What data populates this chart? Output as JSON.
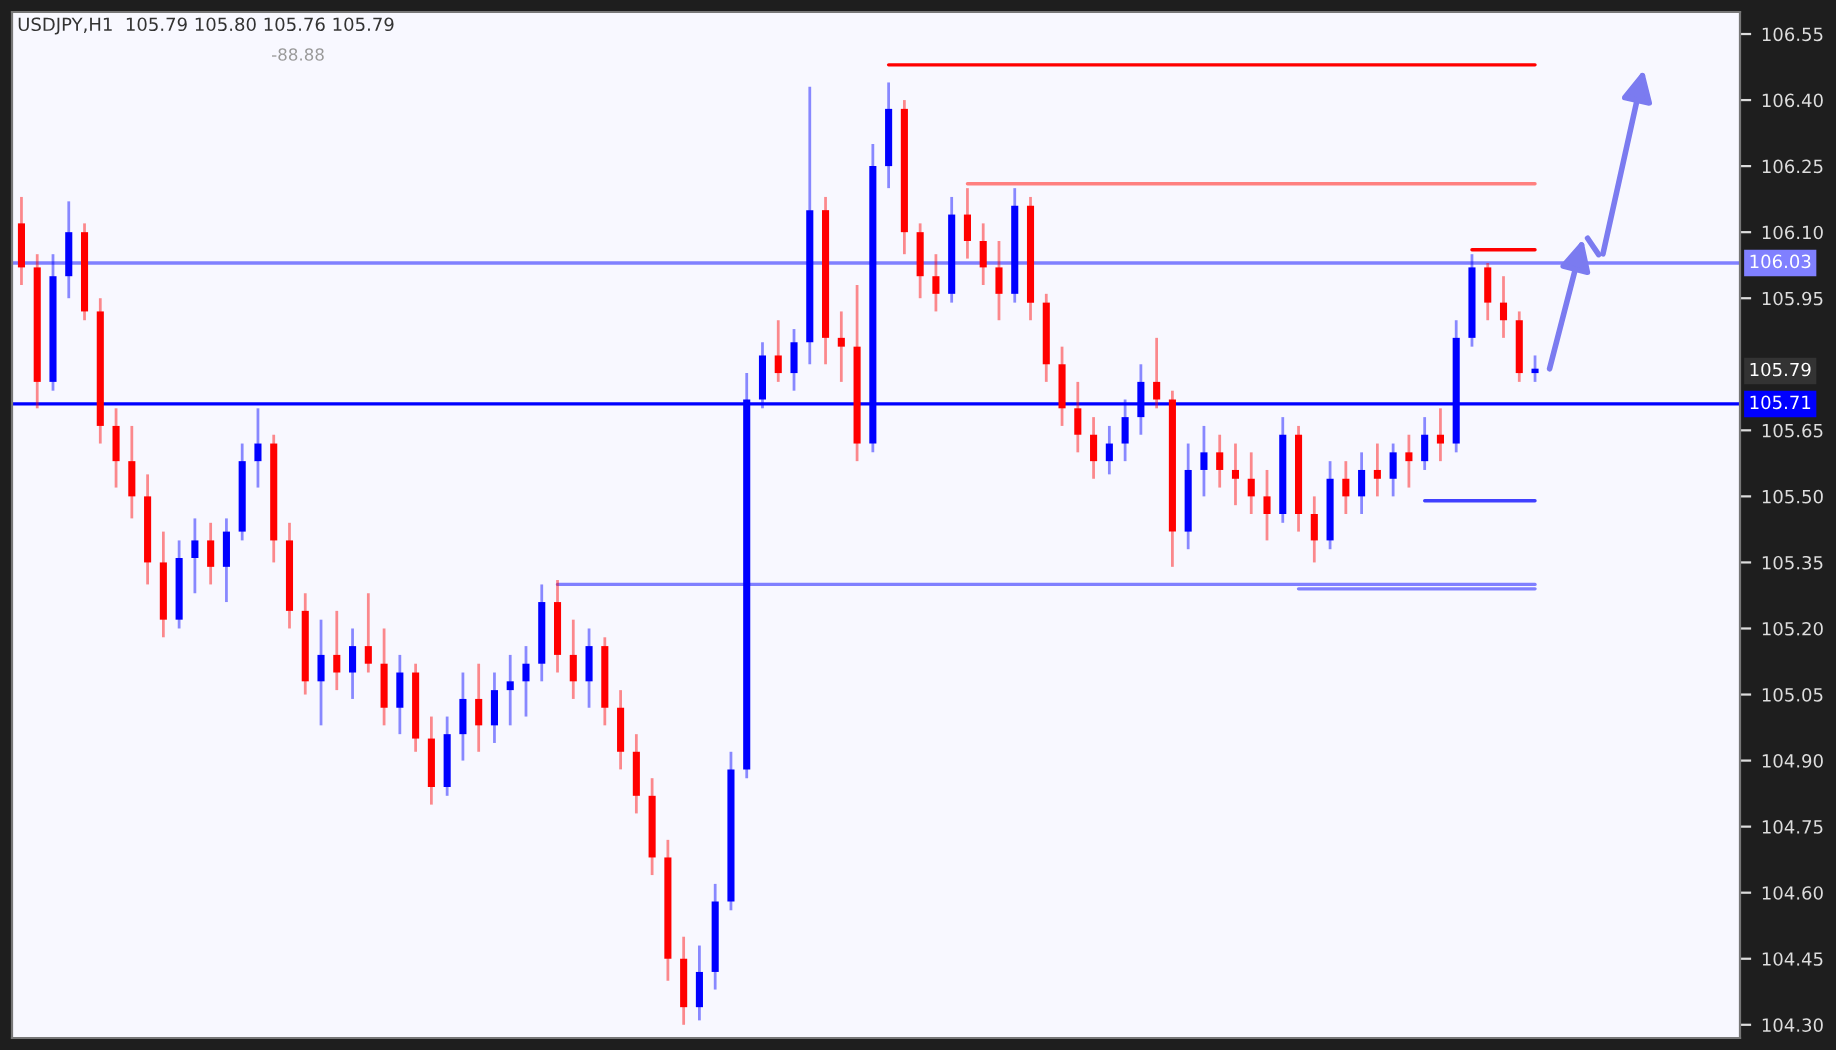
{
  "chart_data": {
    "type": "candlestick",
    "title": "USDJPY,H1  105.79 105.80 105.76 105.79",
    "annotations": [
      "-88.88",
      "105.79"
    ],
    "categories": [
      null,
      null,
      null,
      null,
      null,
      null,
      null,
      null,
      null,
      null,
      null,
      null,
      null,
      null,
      null,
      null,
      null,
      null,
      null,
      null,
      null,
      null,
      null,
      null,
      null,
      null,
      null,
      null,
      null,
      null,
      null,
      null,
      null,
      null,
      null,
      null,
      null,
      null,
      null,
      null,
      null,
      null,
      null,
      null,
      null,
      null,
      null,
      null,
      null,
      null,
      null,
      null,
      null,
      null,
      null,
      null,
      null,
      null,
      null,
      null,
      null,
      null,
      null,
      null,
      null,
      null,
      null,
      null,
      null,
      null,
      null,
      null,
      null,
      null,
      null,
      null,
      null,
      null,
      null,
      null,
      null,
      null,
      null,
      null,
      null,
      null,
      null,
      null,
      null,
      null,
      null,
      null,
      null,
      null,
      null,
      null,
      null
    ],
    "ohlc": [
      [
        106.12,
        106.18,
        105.98,
        106.02
      ],
      [
        106.02,
        106.05,
        105.7,
        105.76
      ],
      [
        105.76,
        106.05,
        105.74,
        106.0
      ],
      [
        106.0,
        106.17,
        105.95,
        106.1
      ],
      [
        106.1,
        106.12,
        105.9,
        105.92
      ],
      [
        105.92,
        105.95,
        105.62,
        105.66
      ],
      [
        105.66,
        105.7,
        105.52,
        105.58
      ],
      [
        105.58,
        105.66,
        105.45,
        105.5
      ],
      [
        105.5,
        105.55,
        105.3,
        105.35
      ],
      [
        105.35,
        105.42,
        105.18,
        105.22
      ],
      [
        105.22,
        105.4,
        105.2,
        105.36
      ],
      [
        105.36,
        105.45,
        105.28,
        105.4
      ],
      [
        105.4,
        105.44,
        105.3,
        105.34
      ],
      [
        105.34,
        105.45,
        105.26,
        105.42
      ],
      [
        105.42,
        105.62,
        105.4,
        105.58
      ],
      [
        105.58,
        105.7,
        105.52,
        105.62
      ],
      [
        105.62,
        105.64,
        105.35,
        105.4
      ],
      [
        105.4,
        105.44,
        105.2,
        105.24
      ],
      [
        105.24,
        105.28,
        105.05,
        105.08
      ],
      [
        105.08,
        105.22,
        104.98,
        105.14
      ],
      [
        105.14,
        105.24,
        105.06,
        105.1
      ],
      [
        105.1,
        105.2,
        105.04,
        105.16
      ],
      [
        105.16,
        105.28,
        105.1,
        105.12
      ],
      [
        105.12,
        105.2,
        104.98,
        105.02
      ],
      [
        105.02,
        105.14,
        104.96,
        105.1
      ],
      [
        105.1,
        105.12,
        104.92,
        104.95
      ],
      [
        104.95,
        105.0,
        104.8,
        104.84
      ],
      [
        104.84,
        105.0,
        104.82,
        104.96
      ],
      [
        104.96,
        105.1,
        104.9,
        105.04
      ],
      [
        105.04,
        105.12,
        104.92,
        104.98
      ],
      [
        104.98,
        105.1,
        104.94,
        105.06
      ],
      [
        105.06,
        105.14,
        104.98,
        105.08
      ],
      [
        105.08,
        105.16,
        105.0,
        105.12
      ],
      [
        105.12,
        105.3,
        105.08,
        105.26
      ],
      [
        105.26,
        105.31,
        105.1,
        105.14
      ],
      [
        105.14,
        105.22,
        105.04,
        105.08
      ],
      [
        105.08,
        105.2,
        105.02,
        105.16
      ],
      [
        105.16,
        105.18,
        104.98,
        105.02
      ],
      [
        105.02,
        105.06,
        104.88,
        104.92
      ],
      [
        104.92,
        104.96,
        104.78,
        104.82
      ],
      [
        104.82,
        104.86,
        104.64,
        104.68
      ],
      [
        104.68,
        104.72,
        104.4,
        104.45
      ],
      [
        104.45,
        104.5,
        104.3,
        104.34
      ],
      [
        104.34,
        104.48,
        104.31,
        104.42
      ],
      [
        104.42,
        104.62,
        104.38,
        104.58
      ],
      [
        104.58,
        104.92,
        104.56,
        104.88
      ],
      [
        104.88,
        105.78,
        104.86,
        105.72
      ],
      [
        105.72,
        105.85,
        105.7,
        105.82
      ],
      [
        105.82,
        105.9,
        105.76,
        105.78
      ],
      [
        105.78,
        105.88,
        105.74,
        105.85
      ],
      [
        105.85,
        106.43,
        105.8,
        106.15
      ],
      [
        106.15,
        106.18,
        105.8,
        105.86
      ],
      [
        105.86,
        105.92,
        105.76,
        105.84
      ],
      [
        105.84,
        105.98,
        105.58,
        105.62
      ],
      [
        105.62,
        106.3,
        105.6,
        106.25
      ],
      [
        106.25,
        106.44,
        106.2,
        106.38
      ],
      [
        106.38,
        106.4,
        106.05,
        106.1
      ],
      [
        106.1,
        106.12,
        105.95,
        106.0
      ],
      [
        106.0,
        106.05,
        105.92,
        105.96
      ],
      [
        105.96,
        106.18,
        105.94,
        106.14
      ],
      [
        106.14,
        106.2,
        106.04,
        106.08
      ],
      [
        106.08,
        106.12,
        105.98,
        106.02
      ],
      [
        106.02,
        106.08,
        105.9,
        105.96
      ],
      [
        105.96,
        106.2,
        105.94,
        106.16
      ],
      [
        106.16,
        106.18,
        105.9,
        105.94
      ],
      [
        105.94,
        105.96,
        105.76,
        105.8
      ],
      [
        105.8,
        105.84,
        105.66,
        105.7
      ],
      [
        105.7,
        105.76,
        105.6,
        105.64
      ],
      [
        105.64,
        105.68,
        105.54,
        105.58
      ],
      [
        105.58,
        105.66,
        105.55,
        105.62
      ],
      [
        105.62,
        105.72,
        105.58,
        105.68
      ],
      [
        105.68,
        105.8,
        105.64,
        105.76
      ],
      [
        105.76,
        105.86,
        105.7,
        105.72
      ],
      [
        105.72,
        105.74,
        105.34,
        105.42
      ],
      [
        105.42,
        105.62,
        105.38,
        105.56
      ],
      [
        105.56,
        105.66,
        105.5,
        105.6
      ],
      [
        105.6,
        105.64,
        105.52,
        105.56
      ],
      [
        105.56,
        105.62,
        105.48,
        105.54
      ],
      [
        105.54,
        105.6,
        105.46,
        105.5
      ],
      [
        105.5,
        105.56,
        105.4,
        105.46
      ],
      [
        105.46,
        105.68,
        105.44,
        105.64
      ],
      [
        105.64,
        105.66,
        105.42,
        105.46
      ],
      [
        105.46,
        105.5,
        105.35,
        105.4
      ],
      [
        105.4,
        105.58,
        105.38,
        105.54
      ],
      [
        105.54,
        105.58,
        105.46,
        105.5
      ],
      [
        105.5,
        105.6,
        105.46,
        105.56
      ],
      [
        105.56,
        105.62,
        105.5,
        105.54
      ],
      [
        105.54,
        105.62,
        105.5,
        105.6
      ],
      [
        105.6,
        105.64,
        105.52,
        105.58
      ],
      [
        105.58,
        105.68,
        105.56,
        105.64
      ],
      [
        105.64,
        105.7,
        105.58,
        105.62
      ],
      [
        105.62,
        105.9,
        105.6,
        105.86
      ],
      [
        105.86,
        106.05,
        105.84,
        106.02
      ],
      [
        106.02,
        106.03,
        105.9,
        105.94
      ],
      [
        105.94,
        106.0,
        105.86,
        105.9
      ],
      [
        105.9,
        105.92,
        105.76,
        105.78
      ],
      [
        105.78,
        105.82,
        105.76,
        105.79
      ]
    ],
    "colors": [
      "#ff0000",
      "#ff0000",
      "#0000ff",
      "#0000ff",
      "#ff0000",
      "#ff0000",
      "#ff0000",
      "#ff0000",
      "#ff0000",
      "#ff0000",
      "#0000ff",
      "#0000ff",
      "#ff0000",
      "#0000ff",
      "#0000ff",
      "#0000ff",
      "#ff0000",
      "#ff0000",
      "#ff0000",
      "#0000ff",
      "#ff0000",
      "#0000ff",
      "#ff0000",
      "#ff0000",
      "#0000ff",
      "#ff0000",
      "#ff0000",
      "#0000ff",
      "#0000ff",
      "#ff0000",
      "#0000ff",
      "#0000ff",
      "#0000ff",
      "#0000ff",
      "#ff0000",
      "#ff0000",
      "#0000ff",
      "#ff0000",
      "#ff0000",
      "#ff0000",
      "#ff0000",
      "#ff0000",
      "#ff0000",
      "#0000ff",
      "#0000ff",
      "#0000ff",
      "#0000ff",
      "#0000ff",
      "#ff0000",
      "#0000ff",
      "#0000ff",
      "#ff0000",
      "#ff0000",
      "#ff0000",
      "#0000ff",
      "#0000ff",
      "#ff0000",
      "#ff0000",
      "#ff0000",
      "#0000ff",
      "#ff0000",
      "#ff0000",
      "#ff0000",
      "#0000ff",
      "#ff0000",
      "#ff0000",
      "#ff0000",
      "#ff0000",
      "#ff0000",
      "#0000ff",
      "#0000ff",
      "#0000ff",
      "#ff0000",
      "#ff0000",
      "#0000ff",
      "#0000ff",
      "#ff0000",
      "#ff0000",
      "#ff0000",
      "#ff0000",
      "#0000ff",
      "#ff0000",
      "#ff0000",
      "#0000ff",
      "#ff0000",
      "#0000ff",
      "#ff0000",
      "#0000ff",
      "#ff0000",
      "#0000ff",
      "#ff0000",
      "#0000ff",
      "#0000ff",
      "#ff0000",
      "#ff0000",
      "#ff0000",
      "#0000ff"
    ],
    "series": [
      {
        "type": "line",
        "color": "#ff0000",
        "values": [
          null,
          null,
          null,
          null,
          null,
          null,
          null,
          null,
          null,
          null,
          null,
          null,
          null,
          null,
          null,
          null,
          null,
          null,
          null,
          null,
          null,
          null,
          null,
          null,
          null,
          null,
          null,
          null,
          null,
          null,
          null,
          null,
          null,
          null,
          null,
          null,
          null,
          null,
          null,
          null,
          null,
          null,
          null,
          null,
          null,
          null,
          null,
          null,
          null,
          null,
          null,
          null,
          null,
          null,
          null,
          106.48,
          106.48,
          106.48,
          106.48,
          106.48,
          106.48,
          106.48,
          106.48,
          106.48,
          106.48,
          106.48,
          106.48,
          106.48,
          106.48,
          106.48,
          106.48,
          106.48,
          106.48,
          106.48,
          106.48,
          106.48,
          106.48,
          106.48,
          106.48,
          106.48,
          106.48,
          106.48,
          106.48,
          106.48,
          106.48,
          106.48,
          106.48,
          106.48,
          106.48,
          106.48,
          106.48,
          106.48,
          106.48,
          106.48,
          106.48,
          106.48,
          106.48
        ]
      },
      {
        "type": "line",
        "color": "#ff8080",
        "values": [
          null,
          null,
          null,
          null,
          null,
          null,
          null,
          null,
          null,
          null,
          null,
          null,
          null,
          null,
          null,
          null,
          null,
          null,
          null,
          null,
          null,
          null,
          null,
          null,
          null,
          null,
          null,
          null,
          null,
          null,
          null,
          null,
          null,
          null,
          null,
          null,
          null,
          null,
          null,
          null,
          null,
          null,
          null,
          null,
          null,
          null,
          null,
          null,
          null,
          null,
          null,
          null,
          null,
          null,
          null,
          null,
          null,
          null,
          null,
          null,
          106.21,
          106.21,
          106.21,
          106.21,
          106.21,
          106.21,
          106.21,
          106.21,
          106.21,
          106.21,
          106.21,
          106.21,
          106.21,
          106.21,
          106.21,
          106.21,
          106.21,
          106.21,
          106.21,
          106.21,
          106.21,
          106.21,
          106.21,
          106.21,
          106.21,
          106.21,
          106.21,
          106.21,
          106.21,
          106.21,
          106.21,
          106.21,
          106.21,
          106.21,
          106.21,
          106.21,
          106.21
        ]
      },
      {
        "type": "line",
        "color": "#ff0000",
        "values": [
          null,
          null,
          null,
          null,
          null,
          null,
          null,
          null,
          null,
          null,
          null,
          null,
          null,
          null,
          null,
          null,
          null,
          null,
          null,
          null,
          null,
          null,
          null,
          null,
          null,
          null,
          null,
          null,
          null,
          null,
          null,
          null,
          null,
          null,
          null,
          null,
          null,
          null,
          null,
          null,
          null,
          null,
          null,
          null,
          null,
          null,
          null,
          null,
          null,
          null,
          null,
          null,
          null,
          null,
          null,
          null,
          null,
          null,
          null,
          null,
          null,
          null,
          null,
          null,
          null,
          null,
          null,
          null,
          null,
          null,
          null,
          null,
          null,
          null,
          null,
          null,
          null,
          null,
          null,
          null,
          null,
          null,
          null,
          null,
          null,
          null,
          null,
          null,
          null,
          null,
          null,
          null,
          106.06,
          106.06,
          106.06,
          106.06,
          106.06
        ]
      },
      {
        "type": "line",
        "color": "#4040ff",
        "values": [
          null,
          null,
          null,
          null,
          null,
          null,
          null,
          null,
          null,
          null,
          null,
          null,
          null,
          null,
          null,
          null,
          null,
          null,
          null,
          null,
          null,
          null,
          null,
          null,
          null,
          null,
          null,
          null,
          null,
          null,
          null,
          null,
          null,
          null,
          null,
          null,
          null,
          null,
          null,
          null,
          null,
          null,
          null,
          null,
          null,
          null,
          null,
          null,
          null,
          null,
          null,
          null,
          null,
          null,
          null,
          null,
          null,
          null,
          null,
          null,
          null,
          null,
          null,
          null,
          null,
          null,
          null,
          null,
          null,
          null,
          null,
          null,
          null,
          null,
          null,
          null,
          null,
          null,
          null,
          null,
          null,
          null,
          null,
          null,
          null,
          null,
          null,
          null,
          null,
          105.49,
          105.49,
          105.49,
          105.49,
          105.49,
          105.49,
          105.49,
          105.49
        ]
      },
      {
        "type": "line",
        "color": "#8080ff",
        "values": [
          null,
          null,
          null,
          null,
          null,
          null,
          null,
          null,
          null,
          null,
          null,
          null,
          null,
          null,
          null,
          null,
          null,
          null,
          null,
          null,
          null,
          null,
          null,
          null,
          null,
          null,
          null,
          null,
          null,
          null,
          null,
          null,
          null,
          null,
          105.3,
          105.3,
          105.3,
          105.3,
          105.3,
          105.3,
          105.3,
          105.3,
          105.3,
          105.3,
          105.3,
          105.3,
          105.3,
          105.3,
          105.3,
          105.3,
          105.3,
          105.3,
          105.3,
          105.3,
          105.3,
          105.3,
          105.3,
          105.3,
          105.3,
          105.3,
          105.3,
          105.3,
          105.3,
          105.3,
          105.3,
          105.3,
          105.3,
          105.3,
          105.3,
          105.3,
          105.3,
          105.3,
          105.3,
          105.3,
          105.3,
          105.3,
          105.3,
          105.3,
          105.3,
          105.3,
          105.3,
          105.3,
          105.3,
          105.3,
          105.3,
          105.3,
          105.3,
          105.3,
          105.3,
          105.3,
          105.3,
          105.3,
          105.3,
          105.3,
          105.3,
          105.3,
          105.3
        ]
      },
      {
        "type": "line",
        "color": "#8080ff",
        "values": [
          null,
          null,
          null,
          null,
          null,
          null,
          null,
          null,
          null,
          null,
          null,
          null,
          null,
          null,
          null,
          null,
          null,
          null,
          null,
          null,
          null,
          null,
          null,
          null,
          null,
          null,
          null,
          null,
          null,
          null,
          null,
          null,
          null,
          null,
          null,
          null,
          null,
          null,
          null,
          null,
          null,
          null,
          null,
          null,
          null,
          null,
          null,
          null,
          null,
          null,
          null,
          null,
          null,
          null,
          null,
          null,
          null,
          null,
          null,
          null,
          null,
          null,
          null,
          null,
          null,
          null,
          null,
          null,
          null,
          null,
          null,
          null,
          null,
          null,
          null,
          null,
          null,
          null,
          null,
          null,
          null,
          105.29,
          105.29,
          105.29,
          105.29,
          105.29,
          105.29,
          105.29,
          105.29,
          105.29,
          105.29,
          105.29,
          105.29,
          105.29,
          105.29,
          105.29,
          105.29
        ]
      }
    ],
    "ref_lines": [
      {
        "axis": "y",
        "value": 106.03,
        "label": "106.03",
        "color": "#8080ff"
      },
      {
        "axis": "y",
        "value": 105.71,
        "label": "105.71",
        "color": "#0000ff"
      }
    ],
    "ylim": [
      104.27,
      106.6
    ],
    "yticks": [
      {
        "value": 104.3,
        "label": "104.30"
      },
      {
        "value": 104.45,
        "label": "104.45"
      },
      {
        "value": 104.6,
        "label": "104.60"
      },
      {
        "value": 104.75,
        "label": "104.75"
      },
      {
        "value": 104.9,
        "label": "104.90"
      },
      {
        "value": 105.05,
        "label": "105.05"
      },
      {
        "value": 105.2,
        "label": "105.20"
      },
      {
        "value": 105.35,
        "label": "105.35"
      },
      {
        "value": 105.5,
        "label": "105.50"
      },
      {
        "value": 105.65,
        "label": "105.65"
      },
      {
        "value": 105.95,
        "label": "105.95"
      },
      {
        "value": 106.1,
        "label": "106.10"
      },
      {
        "value": 106.25,
        "label": "106.25"
      },
      {
        "value": 106.4,
        "label": "106.40"
      },
      {
        "value": 106.55,
        "label": "106.55"
      }
    ],
    "grid": false,
    "legend": false
  }
}
